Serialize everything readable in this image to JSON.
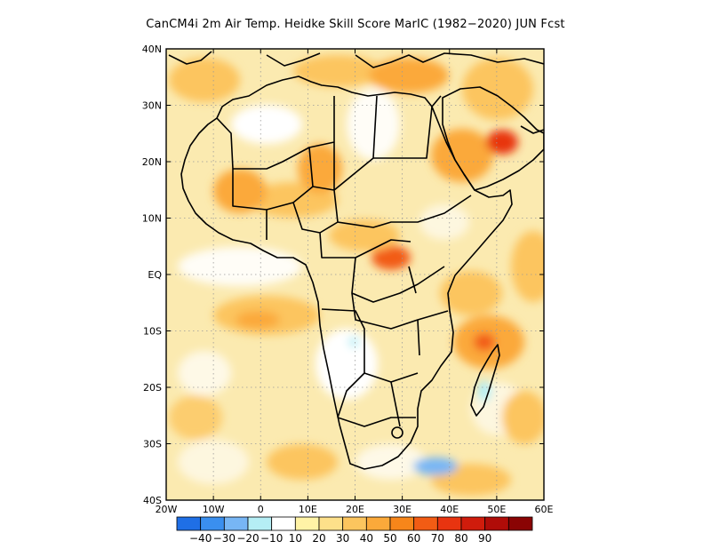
{
  "title": "CanCM4i  2m Air Temp. Heidke Skill Score MarIC (1982−2020) JUN Fcst",
  "map": {
    "lon_range": [
      -20,
      60
    ],
    "lat_range": [
      -40,
      40
    ],
    "lat_ticks": [
      {
        "value": 40,
        "label": "40N"
      },
      {
        "value": 30,
        "label": "30N"
      },
      {
        "value": 20,
        "label": "20N"
      },
      {
        "value": 10,
        "label": "10N"
      },
      {
        "value": 0,
        "label": "EQ"
      },
      {
        "value": -10,
        "label": "10S"
      },
      {
        "value": -20,
        "label": "20S"
      },
      {
        "value": -30,
        "label": "30S"
      },
      {
        "value": -40,
        "label": "40S"
      }
    ],
    "lon_ticks": [
      {
        "value": -20,
        "label": "20W"
      },
      {
        "value": -10,
        "label": "10W"
      },
      {
        "value": 0,
        "label": "0"
      },
      {
        "value": 10,
        "label": "10E"
      },
      {
        "value": 20,
        "label": "20E"
      },
      {
        "value": 30,
        "label": "30E"
      },
      {
        "value": 40,
        "label": "40E"
      },
      {
        "value": 50,
        "label": "50E"
      },
      {
        "value": 60,
        "label": "60E"
      }
    ],
    "grid": "dotted",
    "background_color": "#fbeab0"
  },
  "colorbar": {
    "colors": [
      "#1f6fe6",
      "#3a8fef",
      "#77b6f5",
      "#b5eef5",
      "#ffffff",
      "#fff3a6",
      "#fde08a",
      "#fcc55e",
      "#fba93a",
      "#f7861a",
      "#f25c14",
      "#e83410",
      "#d01c0c",
      "#b00c08",
      "#8a0404"
    ],
    "labels": [
      "−40",
      "−30",
      "−20",
      "−10",
      "10",
      "20",
      "30",
      "40",
      "50",
      "60",
      "70",
      "80",
      "90"
    ]
  }
}
